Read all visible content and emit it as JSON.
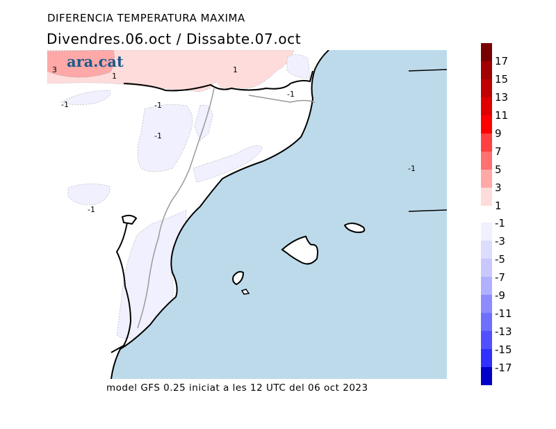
{
  "header": {
    "title": "DIFERENCIA TEMPERATURA MAXIMA",
    "subtitle": "Divendres.06.oct / Dissabte.07.oct"
  },
  "logo": {
    "text": "ara.cat"
  },
  "footer": {
    "text": "model GFS 0.25 iniciat a les 12 UTC del 06 oct 2023"
  },
  "contour_labels": [
    "3",
    "1",
    "1",
    "-1",
    "-1",
    "-1",
    "-1",
    "-1",
    "-1"
  ],
  "colors": {
    "sea": "#bddaeb",
    "land": "#ffffff",
    "pos1": "#ffdcdc",
    "pos3": "#ffa8a8",
    "neg1": "#f0f0ff"
  },
  "colorbar": {
    "positive": [
      {
        "label": "1",
        "color": "#ffdcdc"
      },
      {
        "label": "3",
        "color": "#ffa8a8"
      },
      {
        "label": "5",
        "color": "#ff7070"
      },
      {
        "label": "7",
        "color": "#ff4040"
      },
      {
        "label": "9",
        "color": "#ff0000"
      },
      {
        "label": "11",
        "color": "#e00000"
      },
      {
        "label": "13",
        "color": "#c00000"
      },
      {
        "label": "15",
        "color": "#a00000"
      },
      {
        "label": "17",
        "color": "#780000"
      }
    ],
    "negative": [
      {
        "label": "-1",
        "color": "#f0f0ff"
      },
      {
        "label": "-3",
        "color": "#dcdcff"
      },
      {
        "label": "-5",
        "color": "#c8c8ff"
      },
      {
        "label": "-7",
        "color": "#b0b0ff"
      },
      {
        "label": "-9",
        "color": "#8c8cff"
      },
      {
        "label": "-11",
        "color": "#6e6eff"
      },
      {
        "label": "-13",
        "color": "#5050ff"
      },
      {
        "label": "-15",
        "color": "#3030ff"
      },
      {
        "label": "-17",
        "color": "#0000c8"
      }
    ]
  }
}
